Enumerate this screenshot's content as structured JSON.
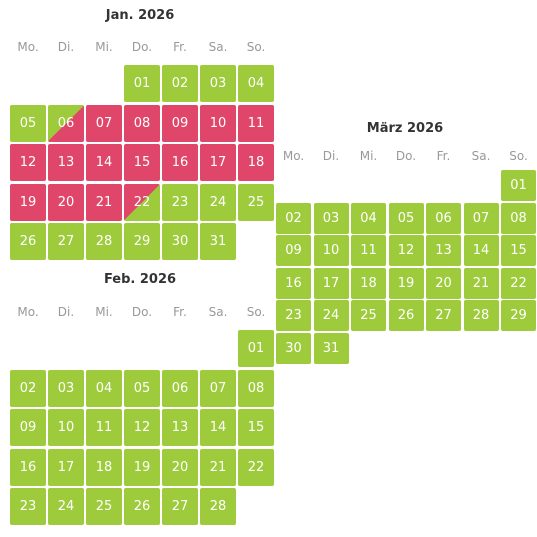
{
  "months": [
    {
      "title": "Jan. 2026",
      "weekdays": [
        "Mo.",
        "Di.",
        "Mi.",
        "Do.",
        "Fr.",
        "Sa.",
        "So."
      ],
      "days": [
        {
          "label": "01",
          "state": "free"
        },
        {
          "label": "02",
          "state": "free"
        },
        {
          "label": "03",
          "state": "free"
        },
        {
          "label": "04",
          "state": "free"
        },
        {
          "label": "05",
          "state": "free"
        },
        {
          "label": "06",
          "state": "arrival"
        },
        {
          "label": "07",
          "state": "booked"
        },
        {
          "label": "08",
          "state": "booked"
        },
        {
          "label": "09",
          "state": "booked"
        },
        {
          "label": "10",
          "state": "booked"
        },
        {
          "label": "11",
          "state": "booked"
        },
        {
          "label": "12",
          "state": "booked"
        },
        {
          "label": "13",
          "state": "booked"
        },
        {
          "label": "14",
          "state": "booked"
        },
        {
          "label": "15",
          "state": "booked"
        },
        {
          "label": "16",
          "state": "booked"
        },
        {
          "label": "17",
          "state": "booked"
        },
        {
          "label": "18",
          "state": "booked"
        },
        {
          "label": "19",
          "state": "booked"
        },
        {
          "label": "20",
          "state": "booked"
        },
        {
          "label": "21",
          "state": "booked"
        },
        {
          "label": "22",
          "state": "departure"
        },
        {
          "label": "23",
          "state": "free"
        },
        {
          "label": "24",
          "state": "free"
        },
        {
          "label": "25",
          "state": "free"
        },
        {
          "label": "26",
          "state": "free"
        },
        {
          "label": "27",
          "state": "free"
        },
        {
          "label": "28",
          "state": "free"
        },
        {
          "label": "29",
          "state": "free"
        },
        {
          "label": "30",
          "state": "free"
        },
        {
          "label": "31",
          "state": "free"
        }
      ]
    },
    {
      "title": "Feb. 2026",
      "weekdays": [
        "Mo.",
        "Di.",
        "Mi.",
        "Do.",
        "Fr.",
        "Sa.",
        "So."
      ],
      "days": [
        {
          "label": "01",
          "state": "free"
        },
        {
          "label": "02",
          "state": "free"
        },
        {
          "label": "03",
          "state": "free"
        },
        {
          "label": "04",
          "state": "free"
        },
        {
          "label": "05",
          "state": "free"
        },
        {
          "label": "06",
          "state": "free"
        },
        {
          "label": "07",
          "state": "free"
        },
        {
          "label": "08",
          "state": "free"
        },
        {
          "label": "09",
          "state": "free"
        },
        {
          "label": "10",
          "state": "free"
        },
        {
          "label": "11",
          "state": "free"
        },
        {
          "label": "12",
          "state": "free"
        },
        {
          "label": "13",
          "state": "free"
        },
        {
          "label": "14",
          "state": "free"
        },
        {
          "label": "15",
          "state": "free"
        },
        {
          "label": "16",
          "state": "free"
        },
        {
          "label": "17",
          "state": "free"
        },
        {
          "label": "18",
          "state": "free"
        },
        {
          "label": "19",
          "state": "free"
        },
        {
          "label": "20",
          "state": "free"
        },
        {
          "label": "21",
          "state": "free"
        },
        {
          "label": "22",
          "state": "free"
        },
        {
          "label": "23",
          "state": "free"
        },
        {
          "label": "24",
          "state": "free"
        },
        {
          "label": "25",
          "state": "free"
        },
        {
          "label": "26",
          "state": "free"
        },
        {
          "label": "27",
          "state": "free"
        },
        {
          "label": "28",
          "state": "free"
        }
      ]
    },
    {
      "title": "März 2026",
      "weekdays": [
        "Mo.",
        "Di.",
        "Mi.",
        "Do.",
        "Fr.",
        "Sa.",
        "So."
      ],
      "days": [
        {
          "label": "01",
          "state": "free"
        },
        {
          "label": "02",
          "state": "free"
        },
        {
          "label": "03",
          "state": "free"
        },
        {
          "label": "04",
          "state": "free"
        },
        {
          "label": "05",
          "state": "free"
        },
        {
          "label": "06",
          "state": "free"
        },
        {
          "label": "07",
          "state": "free"
        },
        {
          "label": "08",
          "state": "free"
        },
        {
          "label": "09",
          "state": "free"
        },
        {
          "label": "10",
          "state": "free"
        },
        {
          "label": "11",
          "state": "free"
        },
        {
          "label": "12",
          "state": "free"
        },
        {
          "label": "13",
          "state": "free"
        },
        {
          "label": "14",
          "state": "free"
        },
        {
          "label": "15",
          "state": "free"
        },
        {
          "label": "16",
          "state": "free"
        },
        {
          "label": "17",
          "state": "free"
        },
        {
          "label": "18",
          "state": "free"
        },
        {
          "label": "19",
          "state": "free"
        },
        {
          "label": "20",
          "state": "free"
        },
        {
          "label": "21",
          "state": "free"
        },
        {
          "label": "22",
          "state": "free"
        },
        {
          "label": "23",
          "state": "free"
        },
        {
          "label": "24",
          "state": "free"
        },
        {
          "label": "25",
          "state": "free"
        },
        {
          "label": "26",
          "state": "free"
        },
        {
          "label": "27",
          "state": "free"
        },
        {
          "label": "28",
          "state": "free"
        },
        {
          "label": "29",
          "state": "free"
        },
        {
          "label": "30",
          "state": "free"
        },
        {
          "label": "31",
          "state": "free"
        }
      ]
    }
  ]
}
